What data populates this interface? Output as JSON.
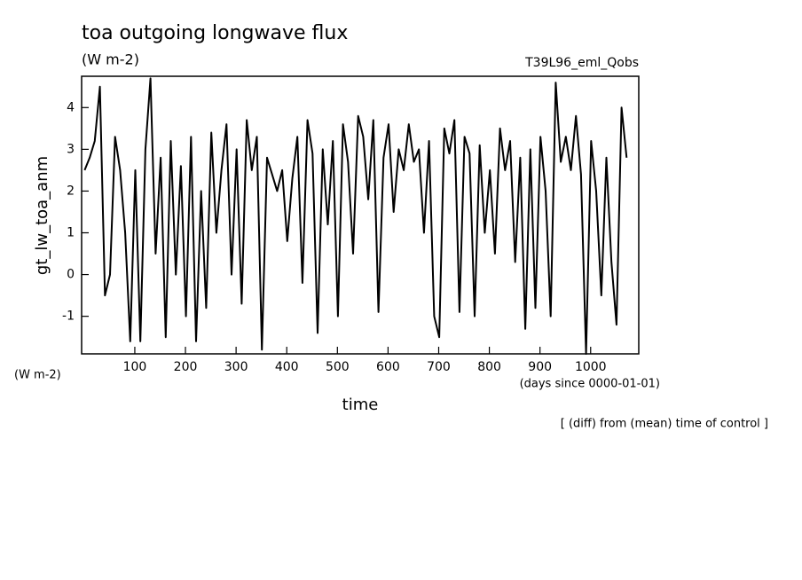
{
  "chart_data": {
    "type": "line",
    "title": "toa outgoing longwave flux",
    "subtitle": "(W m-2)",
    "annotation_right": "T39L96_eml_Qobs",
    "ylabel": "gt_lw_toa_anm",
    "yunit": "(W m-2)",
    "xlabel": "time",
    "xunit": "(days since 0000-01-01)",
    "note": "[ (diff) from (mean) time of control ]",
    "xlim": [
      -5,
      1095
    ],
    "ylim": [
      -1.9,
      4.75
    ],
    "xticks": [
      100,
      200,
      300,
      400,
      500,
      600,
      700,
      800,
      900,
      1000
    ],
    "yticks": [
      -1,
      0,
      1,
      2,
      3,
      4
    ],
    "x": [
      1,
      11,
      21,
      31,
      41,
      51,
      61,
      71,
      81,
      91,
      101,
      111,
      121,
      131,
      141,
      151,
      161,
      171,
      181,
      191,
      201,
      211,
      221,
      231,
      241,
      251,
      261,
      271,
      281,
      291,
      301,
      311,
      321,
      331,
      341,
      351,
      361,
      371,
      381,
      391,
      401,
      411,
      421,
      431,
      441,
      451,
      461,
      471,
      481,
      491,
      501,
      511,
      521,
      531,
      541,
      551,
      561,
      571,
      581,
      591,
      601,
      611,
      621,
      631,
      641,
      651,
      661,
      671,
      681,
      691,
      701,
      711,
      721,
      731,
      741,
      751,
      761,
      771,
      781,
      791,
      801,
      811,
      821,
      831,
      841,
      851,
      861,
      871,
      881,
      891,
      901,
      911,
      921,
      931,
      941,
      951,
      961,
      971,
      981,
      991,
      1001,
      1011,
      1021,
      1031,
      1041,
      1051,
      1061,
      1071
    ],
    "series": [
      {
        "color": "#000000",
        "values": [
          2.5,
          2.8,
          3.2,
          4.5,
          -0.5,
          0,
          3.3,
          2.5,
          1.0,
          -1.6,
          2.5,
          -1.6,
          3.0,
          4.7,
          0.5,
          2.8,
          -1.5,
          3.2,
          0.0,
          2.6,
          -1.0,
          3.3,
          -1.6,
          2.0,
          -0.8,
          3.4,
          1.0,
          2.5,
          3.6,
          0.0,
          3.0,
          -0.7,
          3.7,
          2.5,
          3.3,
          -1.8,
          2.8,
          2.4,
          2.0,
          2.5,
          0.8,
          2.3,
          3.3,
          -0.2,
          3.7,
          2.9,
          -1.4,
          3.0,
          1.2,
          3.2,
          -1.0,
          3.6,
          2.7,
          0.5,
          3.8,
          3.3,
          1.8,
          3.7,
          -0.9,
          2.8,
          3.6,
          1.5,
          3.0,
          2.5,
          3.6,
          2.7,
          3.0,
          1.0,
          3.2,
          -1.0,
          -1.5,
          3.5,
          2.9,
          3.7,
          -0.9,
          3.3,
          2.9,
          -1.0,
          3.1,
          1.0,
          2.5,
          0.5,
          3.5,
          2.5,
          3.2,
          0.3,
          2.8,
          -1.3,
          3.0,
          -0.8,
          3.3,
          2.0,
          -1.0,
          4.6,
          2.7,
          3.3,
          2.5,
          3.8,
          2.4,
          -1.9,
          3.2,
          2.0,
          -0.5,
          2.8,
          0.3,
          -1.2,
          4.0,
          2.8
        ]
      }
    ]
  }
}
